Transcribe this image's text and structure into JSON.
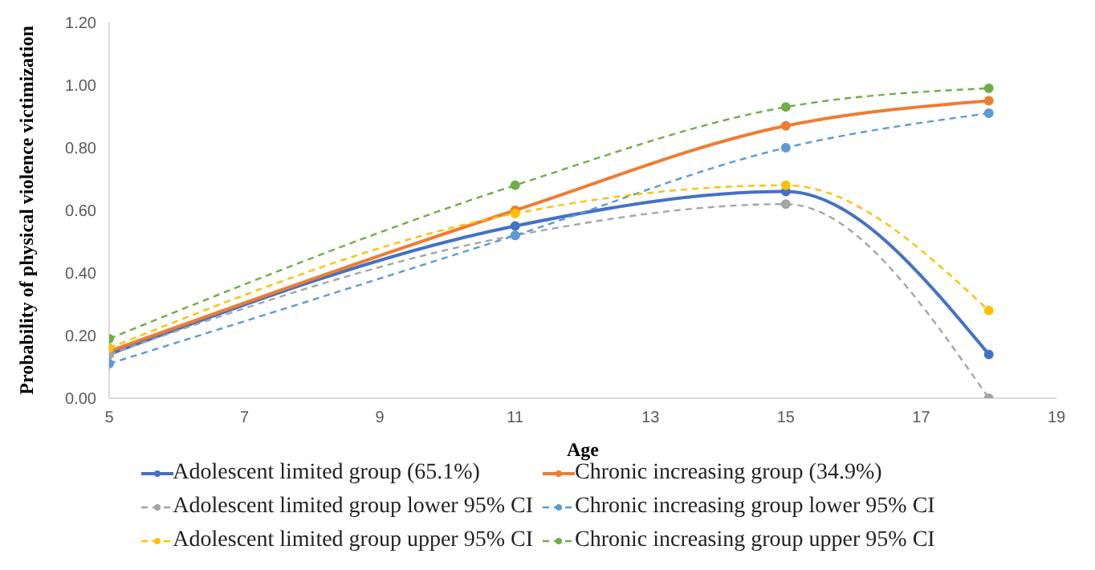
{
  "chart_data": {
    "type": "line",
    "xlabel": "Age",
    "ylabel": "Probability of physical violence victimization",
    "x": [
      5,
      11,
      15,
      18
    ],
    "xlim": [
      5,
      19
    ],
    "xticks": [
      5,
      7,
      9,
      11,
      13,
      15,
      17,
      19
    ],
    "ylim": [
      0,
      1.2
    ],
    "yticks": [
      {
        "value": 0,
        "label": "0.00"
      },
      {
        "value": 0.2,
        "label": "0.20"
      },
      {
        "value": 0.4,
        "label": "0.40"
      },
      {
        "value": 0.6,
        "label": "0.60"
      },
      {
        "value": 0.8,
        "label": "0.80"
      },
      {
        "value": 1,
        "label": "1.00"
      },
      {
        "value": 1.2,
        "label": "1.20"
      }
    ],
    "grid": false,
    "legend": "bottom",
    "marker": "circle",
    "series": [
      {
        "name": "Adolescent limited group (65.1%)",
        "color": "#4472c4",
        "line_style": "solid",
        "values": [
          0.14,
          0.55,
          0.66,
          0.14
        ]
      },
      {
        "name": "Chronic increasing group (34.9%)",
        "color": "#ed7d31",
        "line_style": "solid",
        "values": [
          0.15,
          0.6,
          0.87,
          0.95
        ]
      },
      {
        "name": "Adolescent limited group lower 95% CI",
        "color": "#a5a5a5",
        "line_style": "dashed",
        "values": [
          0.14,
          0.52,
          0.62,
          0.0
        ]
      },
      {
        "name": "Chronic increasing group lower 95% CI",
        "color": "#5b9bd5",
        "line_style": "dashed",
        "values": [
          0.11,
          0.52,
          0.8,
          0.91
        ]
      },
      {
        "name": "Adolescent limited group upper 95% CI",
        "color": "#ffc000",
        "line_style": "dashed",
        "values": [
          0.16,
          0.59,
          0.68,
          0.28
        ]
      },
      {
        "name": "Chronic increasing group upper 95% CI",
        "color": "#70ad47",
        "line_style": "dashed",
        "values": [
          0.19,
          0.68,
          0.93,
          0.99
        ]
      }
    ]
  }
}
